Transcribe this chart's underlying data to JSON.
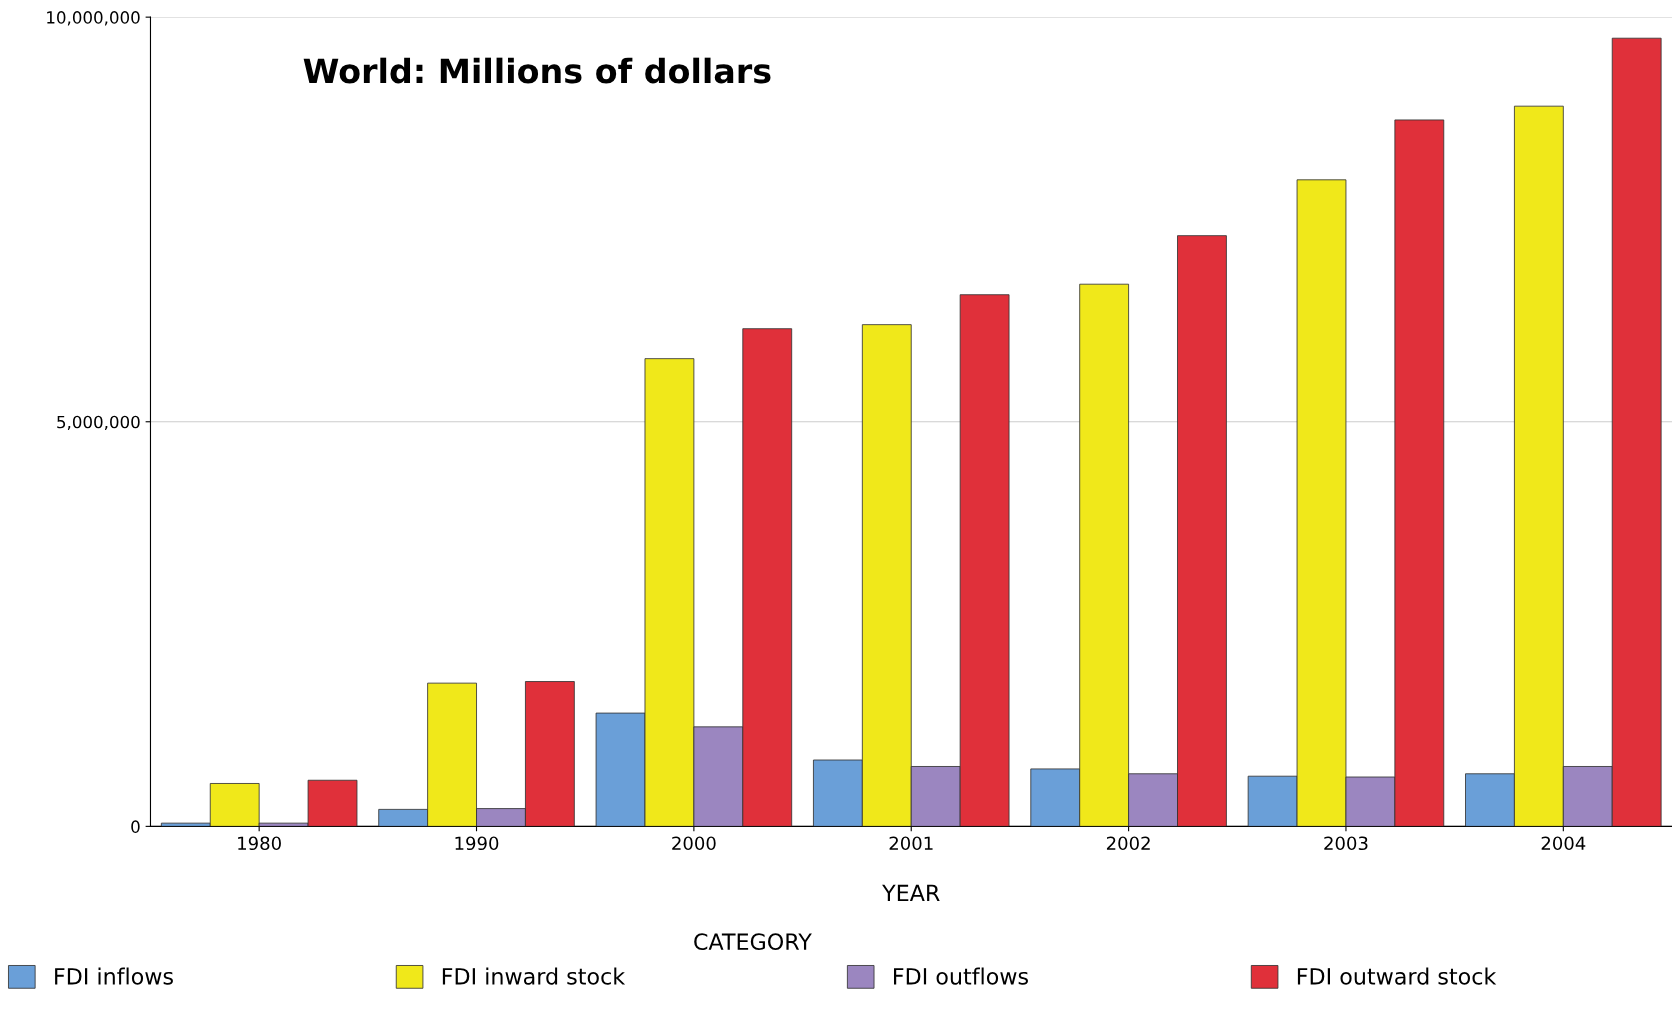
{
  "chart_data": {
    "type": "bar",
    "title": "World: Millions of dollars",
    "xlabel": "YEAR",
    "legend_title": "CATEGORY",
    "categories": [
      "1980",
      "1990",
      "2000",
      "2001",
      "2002",
      "2003",
      "2004"
    ],
    "series": [
      {
        "name": "FDI inflows",
        "color": "#6a9fd8",
        "values": [
          40000,
          210000,
          1400000,
          820000,
          710000,
          620000,
          650000
        ]
      },
      {
        "name": "FDI inward stock",
        "color": "#f0e81a",
        "values": [
          530000,
          1770000,
          5780000,
          6200000,
          6700000,
          7990000,
          8900000
        ]
      },
      {
        "name": "FDI outflows",
        "color": "#9b86c0",
        "values": [
          40000,
          220000,
          1230000,
          740000,
          650000,
          610000,
          740000
        ]
      },
      {
        "name": "FDI outward stock",
        "color": "#e0303a",
        "values": [
          570000,
          1790000,
          6150000,
          6570000,
          7300000,
          8730000,
          9740000
        ]
      }
    ],
    "ylim": [
      0,
      10000000
    ],
    "yticks": [
      {
        "value": 0,
        "label": "0"
      },
      {
        "value": 5000000,
        "label": "5,000,000"
      },
      {
        "value": 10000000,
        "label": "10,000,000"
      }
    ],
    "grid": "y",
    "legend": "bottom"
  }
}
